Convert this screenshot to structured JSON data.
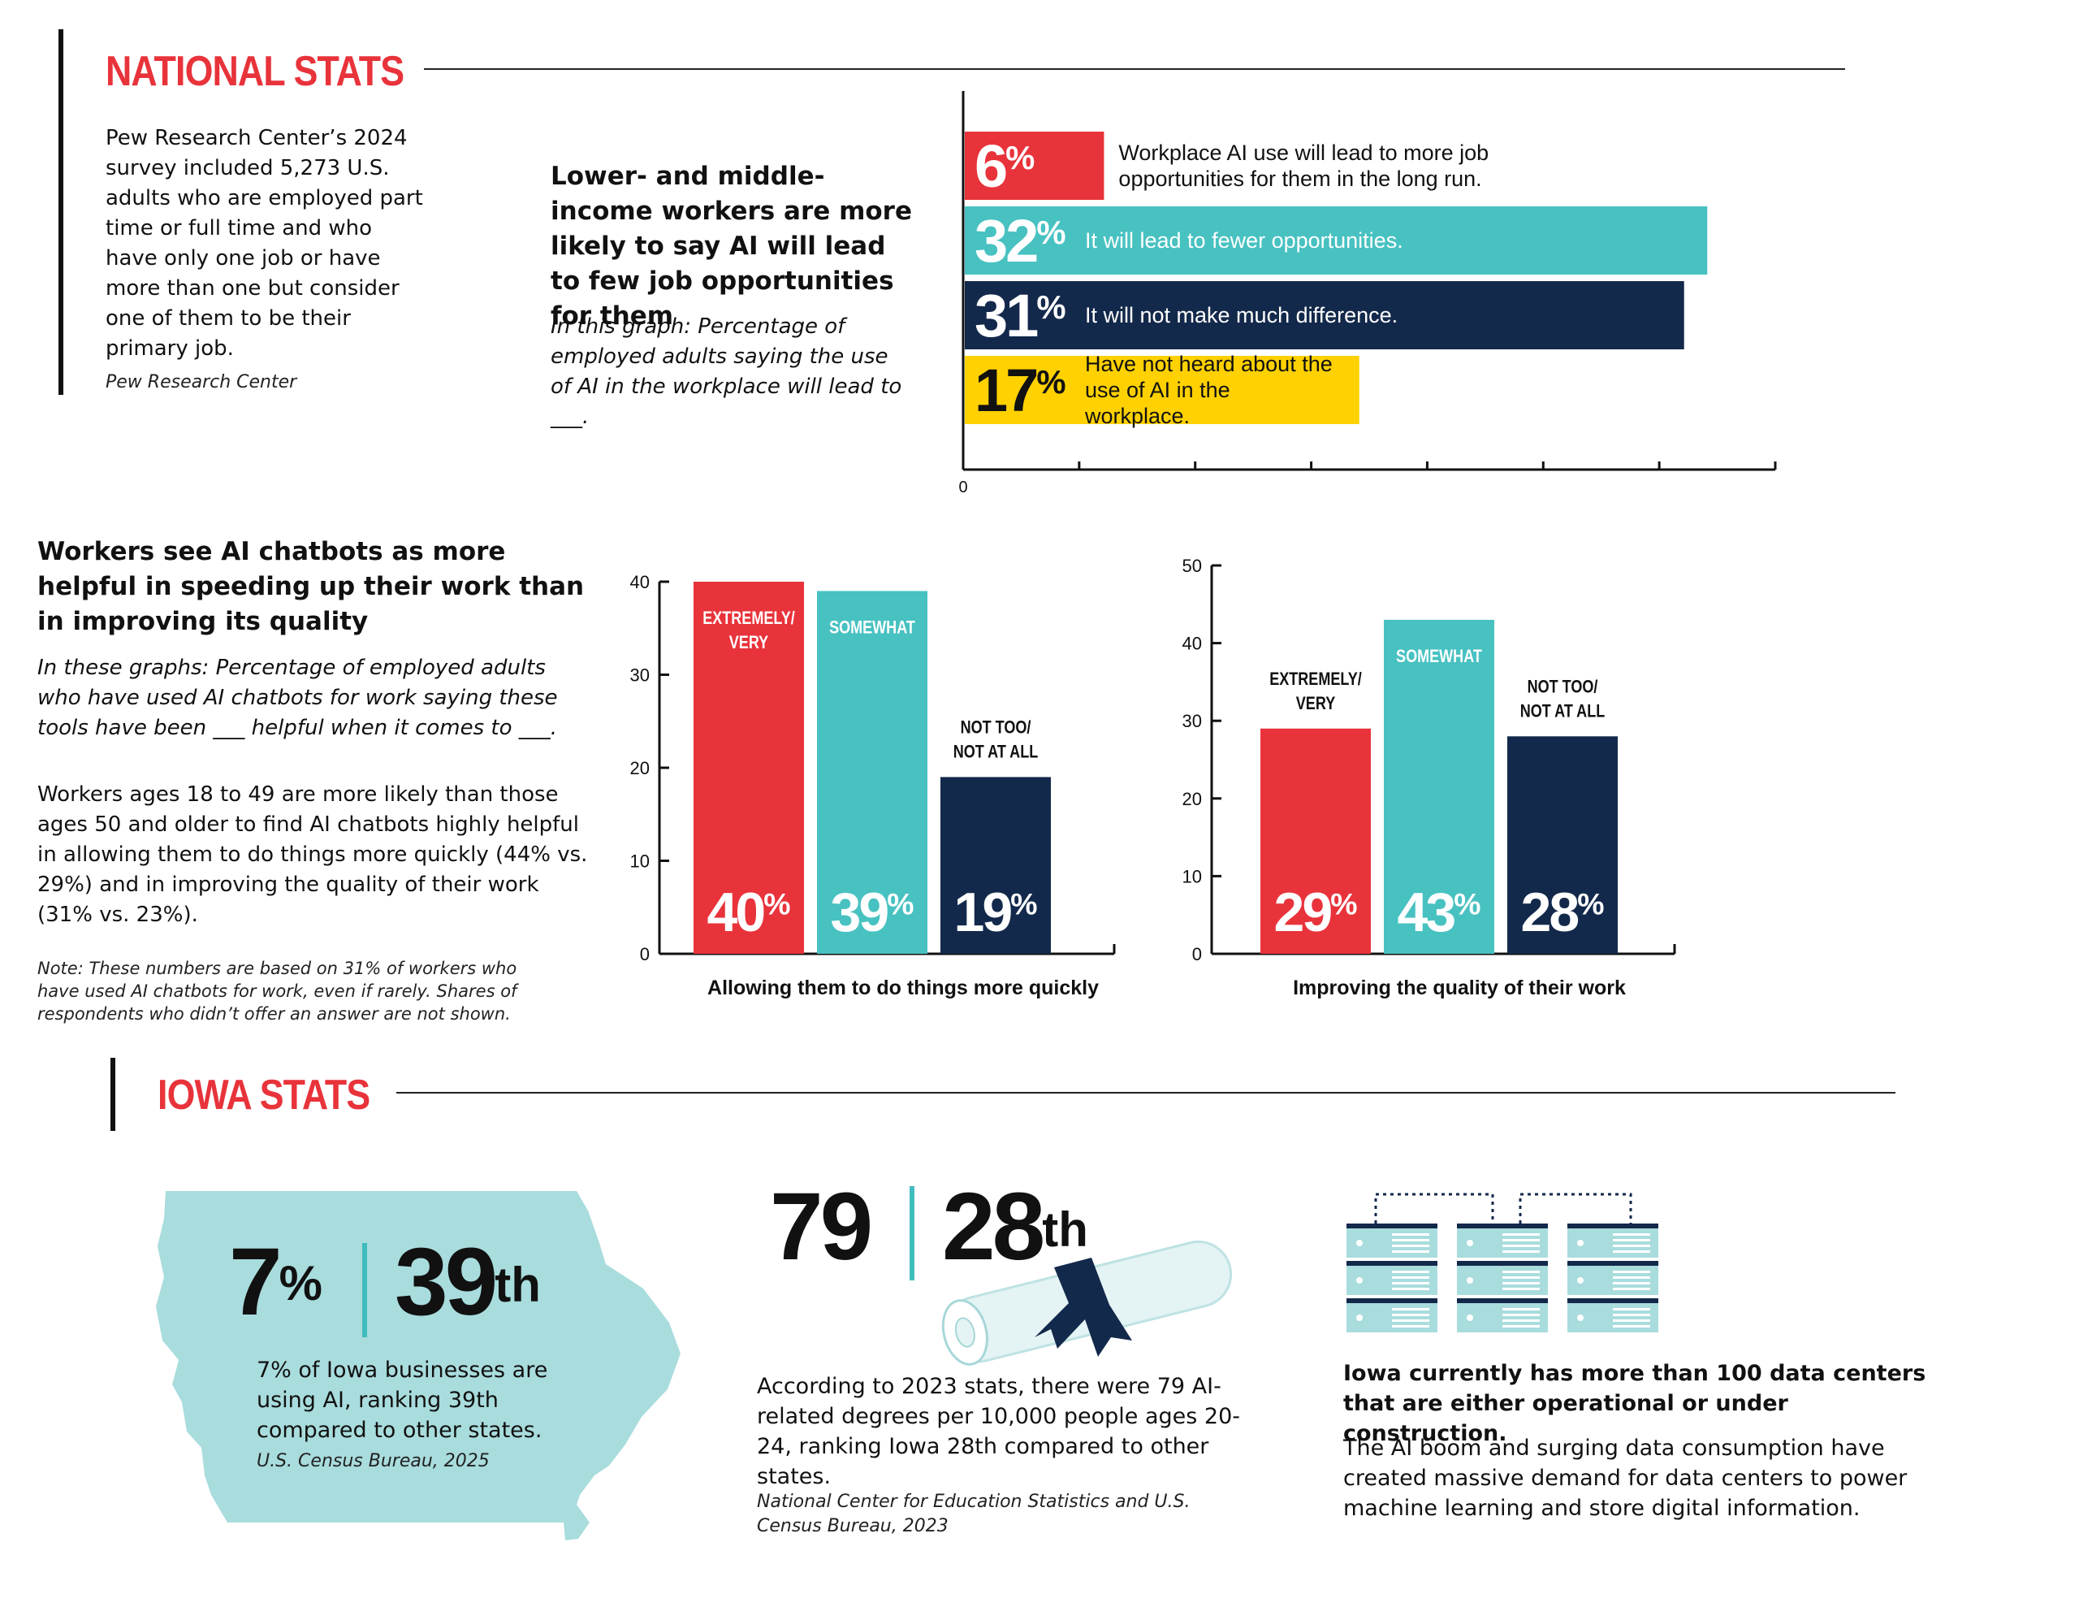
{
  "national": {
    "title": "NATIONAL STATS",
    "intro": "Pew Research Center’s 2024 survey included 5,273 U.S. adults who are employed part time or full time and who have only one job or have more than one but consider one of them to be their primary job.",
    "source": "Pew Research Center"
  },
  "opportunities": {
    "headline": "Lower- and middle-income workers are more likely to say AI will lead to few job opportunities for them",
    "subhead": "In this graph: Percentage of employed adults saying the use of AI in the workplace will lead to ___."
  },
  "chatbots": {
    "headline": "Workers see AI chatbots as more helpful in speeding up their work than in improving its quality",
    "subhead": "In these graphs: Percentage of employed adults who have used AI chatbots for work saying these tools have been ___ helpful when it comes to ___.",
    "body": "Workers ages 18 to 49 are more likely than those ages 50 and older to find AI chatbots highly helpful in allowing them to do things more quickly (44% vs. 29%) and in improving the quality of their work (31% vs. 23%).",
    "note": "Note: These numbers are based on 31% of workers who have used AI chatbots for work, even if rarely. Shares of respondents who didn’t offer an answer are not shown."
  },
  "chart_data": [
    {
      "type": "bar",
      "orientation": "horizontal",
      "categories": [
        "Workplace AI use will lead to more job opportunities for them in the long run.",
        "It will lead to fewer opportunities.",
        "It will not make much difference.",
        "Have not heard about the use of AI in the workplace."
      ],
      "values": [
        6,
        32,
        31,
        17
      ],
      "value_labels": [
        "6%",
        "32%",
        "31%",
        "17%"
      ],
      "colors": [
        "#e8333b",
        "#48c1c1",
        "#13294b",
        "#ffd100"
      ],
      "xlim": [
        0,
        35
      ],
      "x_tick_labels": [
        "0"
      ],
      "grid": false
    },
    {
      "type": "bar",
      "categories": [
        "EXTREMELY/ VERY",
        "SOMEWHAT",
        "NOT TOO/ NOT AT ALL"
      ],
      "values": [
        40,
        39,
        19
      ],
      "value_labels": [
        "40%",
        "39%",
        "19%"
      ],
      "colors": [
        "#e8333b",
        "#48c1c1",
        "#13294b"
      ],
      "ylim": [
        0,
        40
      ],
      "yticks": [
        "0",
        "10",
        "20",
        "30",
        "40"
      ],
      "xlabel": "Allowing them to do things more quickly",
      "grid": false
    },
    {
      "type": "bar",
      "categories": [
        "EXTREMELY/ VERY",
        "SOMEWHAT",
        "NOT TOO/ NOT AT ALL"
      ],
      "values": [
        29,
        43,
        28
      ],
      "value_labels": [
        "29%",
        "43%",
        "28%"
      ],
      "colors": [
        "#e8333b",
        "#48c1c1",
        "#13294b"
      ],
      "ylim": [
        0,
        50
      ],
      "yticks": [
        "0",
        "10",
        "20",
        "30",
        "40",
        "50"
      ],
      "xlabel": "Improving the quality of their work",
      "grid": false
    }
  ],
  "iowa": {
    "title": "IOWA STATS",
    "stat1_a": "7",
    "stat1_a_sup": "%",
    "stat1_b": "39",
    "stat1_b_sup": "th",
    "stat1_text": "7% of Iowa businesses are using AI, ranking 39th compared to other states.",
    "stat1_source": "U.S. Census Bureau, 2025",
    "stat2_a": "79",
    "stat2_b": "28",
    "stat2_b_sup": "th",
    "stat2_text": "According to 2023 stats, there were 79 AI-related degrees per 10,000 people ages 20-24, ranking Iowa 28th compared to other states.",
    "stat2_source": "National Center for Education Statistics and U.S. Census Bureau, 2023",
    "stat3_headline": "Iowa currently has more than 100 data centers that are either operational or under construction.",
    "stat3_text": "The AI boom and surging data consumption have created massive demand for data centers to power machine learning and store digital information."
  },
  "icons": {
    "map": "iowa-map-icon",
    "diploma": "diploma-scroll-icon",
    "servers": "server-racks-icon"
  },
  "colors": {
    "red": "#e8333b",
    "teal": "#48c1c1",
    "navy": "#13294b",
    "yellow": "#ffd100",
    "map": "#a9dcdd"
  }
}
